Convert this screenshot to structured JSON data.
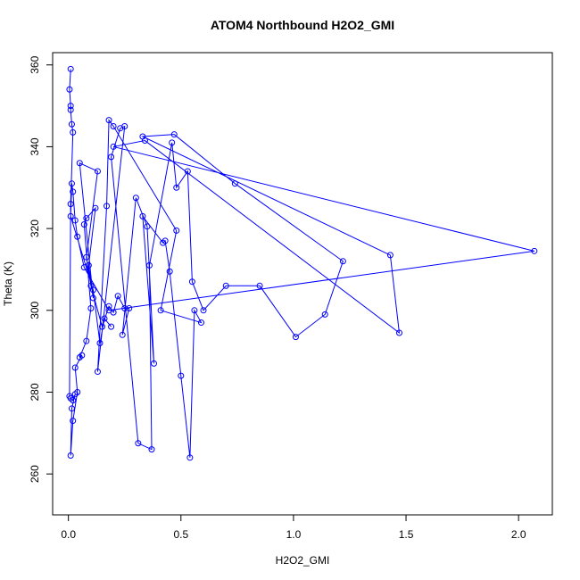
{
  "chart_data": {
    "type": "line",
    "title": "ATOM4 Northbound H2O2_GMI",
    "xlabel": "H2O2_GMI",
    "ylabel": "Theta (K)",
    "xlim": [
      -0.07,
      2.15
    ],
    "ylim": [
      250,
      363
    ],
    "x_ticks": [
      0.0,
      0.5,
      1.0,
      1.5,
      2.0
    ],
    "x_tick_labels": [
      "0.0",
      "0.5",
      "1.0",
      "1.5",
      "2.0"
    ],
    "y_ticks": [
      260,
      280,
      300,
      320,
      340,
      360
    ],
    "y_tick_labels": [
      "260",
      "280",
      "300",
      "320",
      "340",
      "360"
    ],
    "grid": false,
    "line_color": "#0000ff",
    "marker": "open-circle",
    "series": [
      {
        "name": "",
        "x": [
          0.01,
          0.005,
          0.01,
          0.01,
          0.015,
          0.02,
          0.01,
          0.005,
          0.01,
          0.02,
          0.03,
          0.015,
          0.01,
          0.02,
          0.04,
          0.03,
          0.06,
          0.05,
          0.08,
          0.1,
          0.07,
          0.08,
          0.12,
          0.09,
          0.11,
          0.05,
          0.13,
          0.08,
          0.1,
          0.15,
          0.18,
          0.2,
          0.22,
          0.25,
          0.27,
          0.24,
          0.3,
          0.35,
          0.38,
          0.33,
          0.42,
          0.43,
          0.45,
          0.5,
          0.54,
          0.56,
          0.59,
          0.41,
          0.48,
          0.2,
          0.18,
          0.17,
          0.13,
          0.25,
          0.23,
          0.19,
          0.31,
          0.37,
          0.36,
          0.46,
          0.48,
          0.53,
          0.55,
          0.6,
          0.7,
          0.85,
          1.01,
          1.14,
          1.22,
          0.74,
          0.47,
          0.33,
          1.43,
          1.47,
          0.34,
          0.2,
          2.07,
          0.18,
          0.07,
          0.04,
          0.03,
          0.02,
          0.015,
          0.01,
          0.11,
          0.14,
          0.16,
          0.19
        ],
        "y": [
          359,
          354,
          350,
          349,
          345.5,
          343.5,
          326,
          279,
          278.5,
          278,
          279.5,
          276,
          264.5,
          273,
          280,
          286,
          289,
          288.5,
          292.5,
          300.5,
          321,
          322.5,
          325,
          311,
          303,
          336,
          334,
          313,
          306,
          296,
          301,
          299.5,
          303.5,
          300.5,
          300.5,
          294,
          327.5,
          320.5,
          287,
          323,
          316.5,
          317,
          309.5,
          284,
          264,
          300,
          297,
          300,
          319.5,
          345,
          346.5,
          325.5,
          285,
          345,
          344.5,
          337.5,
          267.5,
          266,
          311,
          341,
          330,
          334,
          307,
          300,
          306,
          306,
          293.5,
          299,
          312,
          331,
          343,
          342.5,
          313.5,
          294.5,
          341.5,
          340,
          314.5,
          300,
          310.5,
          318,
          322,
          329,
          331,
          323,
          305,
          292,
          298,
          296
        ]
      }
    ]
  }
}
